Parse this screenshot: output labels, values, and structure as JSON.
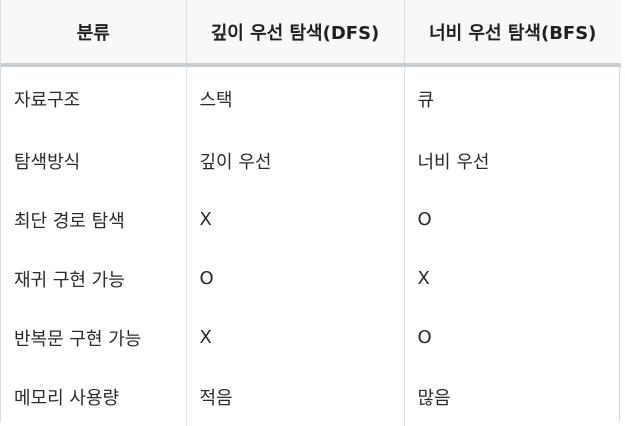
{
  "table": {
    "headers": [
      "분류",
      "깊이 우선 탐색(DFS)",
      "너비 우선 탐색(BFS)"
    ],
    "rows": [
      [
        "자료구조",
        "스택",
        "큐"
      ],
      [
        "탐색방식",
        "깊이 우선",
        "너비 우선"
      ],
      [
        "최단 경로 탐색",
        "X",
        "O"
      ],
      [
        "재귀 구현 가능",
        "O",
        "X"
      ],
      [
        "반복문 구현 가능",
        "X",
        "O"
      ],
      [
        "메모리 사용량",
        "적음",
        "많음"
      ]
    ]
  }
}
